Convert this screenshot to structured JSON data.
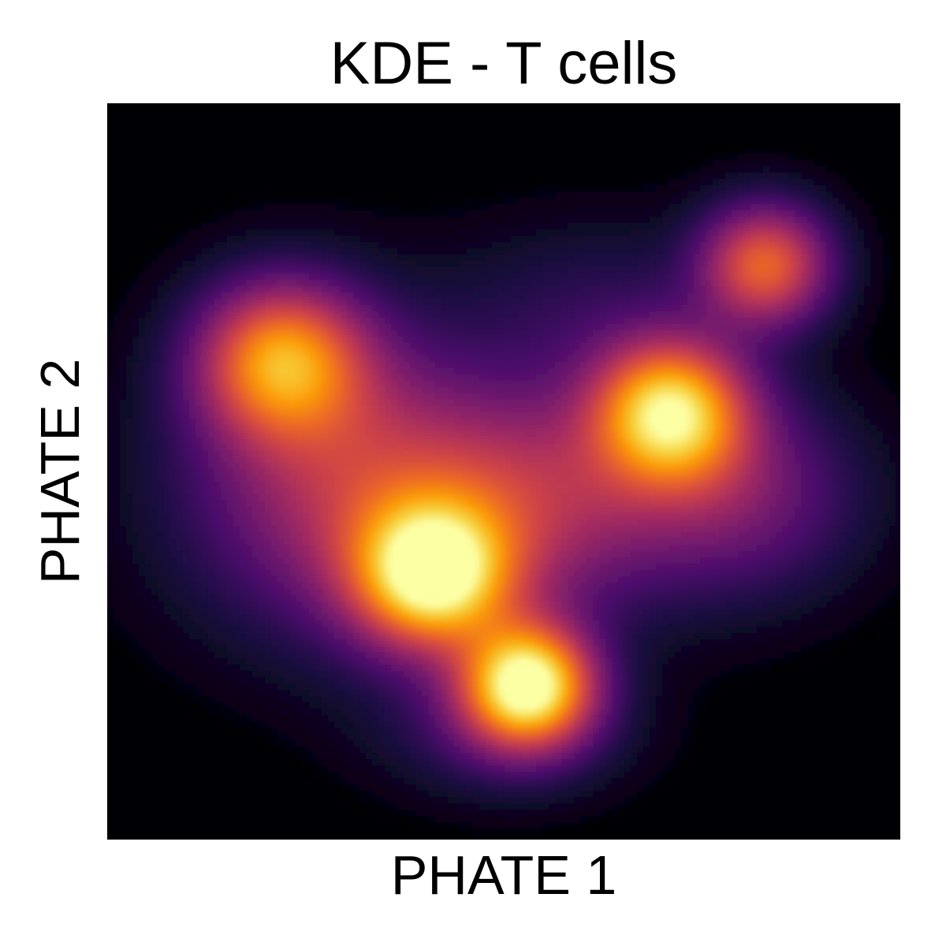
{
  "chart_data": {
    "type": "heatmap",
    "subtype": "kde-density",
    "title": "KDE - T cells",
    "xlabel": "PHATE 1",
    "ylabel": "PHATE 2",
    "xlim": [
      0,
      1
    ],
    "ylim": [
      0,
      1
    ],
    "ticks": "none",
    "grid": false,
    "legend": "none",
    "colormap": "inferno",
    "colormap_stops": [
      "#000004",
      "#1b0c41",
      "#4a0c6b",
      "#781c6d",
      "#a52c60",
      "#cf4446",
      "#ed6925",
      "#fb9b06",
      "#f7d13d",
      "#fcffa4"
    ],
    "density_peaks": [
      {
        "x": 0.53,
        "y": 0.21,
        "amplitude": 1.0,
        "sx": 0.055,
        "sy": 0.055
      },
      {
        "x": 0.41,
        "y": 0.36,
        "amplitude": 0.88,
        "sx": 0.065,
        "sy": 0.065
      },
      {
        "x": 0.71,
        "y": 0.58,
        "amplitude": 0.86,
        "sx": 0.065,
        "sy": 0.065
      },
      {
        "x": 0.22,
        "y": 0.65,
        "amplitude": 0.66,
        "sx": 0.07,
        "sy": 0.07
      },
      {
        "x": 0.83,
        "y": 0.78,
        "amplitude": 0.58,
        "sx": 0.055,
        "sy": 0.055
      },
      {
        "x": 0.38,
        "y": 0.43,
        "amplitude": 0.3,
        "sx": 0.16,
        "sy": 0.12
      },
      {
        "x": 0.55,
        "y": 0.47,
        "amplitude": 0.26,
        "sx": 0.13,
        "sy": 0.1
      },
      {
        "x": 0.8,
        "y": 0.47,
        "amplitude": 0.24,
        "sx": 0.1,
        "sy": 0.09
      },
      {
        "x": 0.28,
        "y": 0.55,
        "amplitude": 0.22,
        "sx": 0.12,
        "sy": 0.12
      },
      {
        "x": 0.62,
        "y": 0.72,
        "amplitude": 0.1,
        "sx": 0.12,
        "sy": 0.08
      },
      {
        "x": 0.5,
        "y": 0.15,
        "amplitude": 0.14,
        "sx": 0.1,
        "sy": 0.06
      }
    ]
  }
}
